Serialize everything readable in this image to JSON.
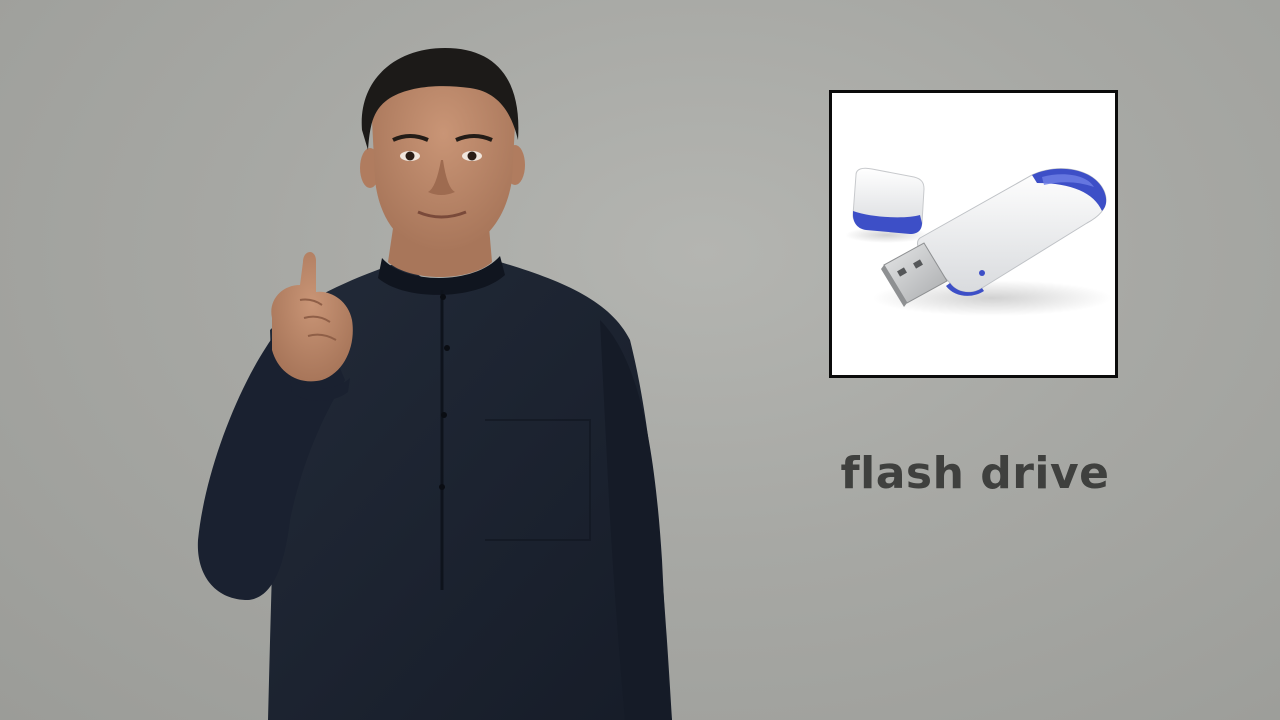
{
  "scene": {
    "background_color": "#a9aaa6",
    "signer": {
      "description_icon": "person-signing-icon",
      "shirt_color": "#1b2230",
      "skin_color": "#b98766",
      "hair_color": "#1c1a18"
    },
    "illustration": {
      "icon": "usb-flash-drive-icon",
      "body_color": "#eef0f2",
      "accent_color": "#3d4fc7",
      "connector_color": "#c9cbcd"
    },
    "caption": {
      "text": "flash drive",
      "color": "#3f403e"
    }
  }
}
